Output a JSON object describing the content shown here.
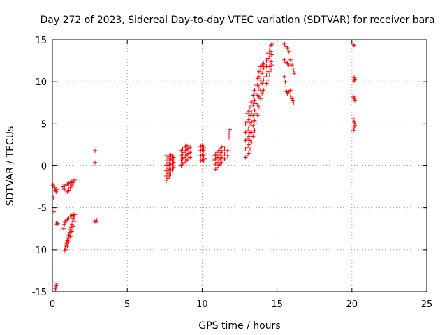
{
  "chart_data": {
    "type": "scatter",
    "title": "Day 272 of 2023, Sidereal Day-to-day VTEC variation (SDTVAR) for receiver bara",
    "xlabel": "GPS time / hours",
    "ylabel": "SDTVAR / TECUs",
    "xlim": [
      0,
      25
    ],
    "ylim": [
      -15,
      15
    ],
    "xticks": [
      0,
      5,
      10,
      15,
      20,
      25
    ],
    "yticks": [
      -15,
      -10,
      -5,
      0,
      5,
      10,
      15
    ],
    "grid": true,
    "marker": "+",
    "color": "#ff0000",
    "series": [
      {
        "name": "SDTVAR",
        "points": [
          [
            0.05,
            -2.3
          ],
          [
            0.08,
            -3.8
          ],
          [
            0.1,
            -5.5
          ],
          [
            0.15,
            -2.6
          ],
          [
            0.2,
            -2.9
          ],
          [
            0.25,
            -3.1
          ],
          [
            0.3,
            -2.8
          ],
          [
            0.2,
            -14.6
          ],
          [
            0.25,
            -14.3
          ],
          [
            0.3,
            -14.0
          ],
          [
            0.22,
            -14.8
          ],
          [
            0.25,
            -6.8
          ],
          [
            0.3,
            -7.0
          ],
          [
            0.35,
            -6.9
          ],
          [
            0.7,
            -2.5
          ],
          [
            0.8,
            -2.4
          ],
          [
            0.9,
            -2.3
          ],
          [
            1.0,
            -2.2
          ],
          [
            1.1,
            -2.1
          ],
          [
            1.2,
            -2.0
          ],
          [
            1.3,
            -1.9
          ],
          [
            1.4,
            -1.8
          ],
          [
            1.5,
            -1.7
          ],
          [
            0.8,
            -2.8
          ],
          [
            0.9,
            -3.0
          ],
          [
            1.0,
            -3.1
          ],
          [
            1.1,
            -2.9
          ],
          [
            1.2,
            -2.6
          ],
          [
            1.3,
            -2.3
          ],
          [
            1.4,
            -2.0
          ],
          [
            0.75,
            -7.5
          ],
          [
            0.8,
            -7.0
          ],
          [
            0.85,
            -6.7
          ],
          [
            0.9,
            -6.5
          ],
          [
            1.0,
            -6.4
          ],
          [
            1.1,
            -6.2
          ],
          [
            1.2,
            -6.0
          ],
          [
            1.3,
            -5.9
          ],
          [
            1.4,
            -5.8
          ],
          [
            1.5,
            -5.8
          ],
          [
            0.8,
            -10.1
          ],
          [
            0.85,
            -9.8
          ],
          [
            0.9,
            -9.5
          ],
          [
            0.95,
            -9.2
          ],
          [
            1.0,
            -8.9
          ],
          [
            1.05,
            -8.6
          ],
          [
            1.1,
            -8.3
          ],
          [
            1.15,
            -8.0
          ],
          [
            1.2,
            -7.6
          ],
          [
            1.25,
            -7.3
          ],
          [
            1.3,
            -7.0
          ],
          [
            1.35,
            -6.6
          ],
          [
            1.4,
            -6.3
          ],
          [
            1.45,
            -6.0
          ],
          [
            1.5,
            -5.8
          ],
          [
            0.9,
            -10.0
          ],
          [
            1.0,
            -9.6
          ],
          [
            1.1,
            -9.0
          ],
          [
            1.2,
            -8.4
          ],
          [
            1.3,
            -7.8
          ],
          [
            1.4,
            -7.2
          ],
          [
            1.5,
            -6.6
          ],
          [
            2.85,
            1.8
          ],
          [
            2.85,
            0.4
          ],
          [
            2.8,
            -6.6
          ],
          [
            2.9,
            -6.7
          ],
          [
            2.95,
            -6.5
          ],
          [
            7.6,
            -1.8
          ],
          [
            7.6,
            -1.2
          ],
          [
            7.6,
            -0.6
          ],
          [
            7.6,
            0.0
          ],
          [
            7.6,
            0.6
          ],
          [
            7.6,
            1.2
          ],
          [
            7.7,
            -1.5
          ],
          [
            7.7,
            -0.9
          ],
          [
            7.7,
            -0.3
          ],
          [
            7.7,
            0.3
          ],
          [
            7.7,
            0.9
          ],
          [
            7.8,
            -1.2
          ],
          [
            7.8,
            -0.6
          ],
          [
            7.8,
            0.0
          ],
          [
            7.8,
            0.6
          ],
          [
            7.8,
            1.1
          ],
          [
            7.9,
            -1.0
          ],
          [
            7.9,
            -0.4
          ],
          [
            7.9,
            0.2
          ],
          [
            7.9,
            0.8
          ],
          [
            7.9,
            1.3
          ],
          [
            8.0,
            -0.5
          ],
          [
            8.0,
            0.1
          ],
          [
            8.0,
            0.7
          ],
          [
            8.0,
            1.2
          ],
          [
            8.1,
            -0.2
          ],
          [
            8.1,
            0.4
          ],
          [
            8.1,
            1.0
          ],
          [
            8.6,
            0.0
          ],
          [
            8.6,
            0.6
          ],
          [
            8.6,
            1.2
          ],
          [
            8.6,
            1.8
          ],
          [
            8.7,
            0.2
          ],
          [
            8.7,
            0.8
          ],
          [
            8.7,
            1.4
          ],
          [
            8.7,
            2.0
          ],
          [
            8.8,
            0.4
          ],
          [
            8.8,
            1.0
          ],
          [
            8.8,
            1.6
          ],
          [
            8.8,
            2.2
          ],
          [
            8.9,
            0.6
          ],
          [
            8.9,
            1.2
          ],
          [
            8.9,
            1.8
          ],
          [
            8.9,
            2.3
          ],
          [
            9.0,
            0.7
          ],
          [
            9.0,
            1.3
          ],
          [
            9.0,
            1.9
          ],
          [
            9.0,
            2.4
          ],
          [
            9.1,
            0.9
          ],
          [
            9.1,
            1.5
          ],
          [
            9.1,
            2.1
          ],
          [
            9.2,
            1.0
          ],
          [
            9.2,
            1.6
          ],
          [
            9.2,
            2.2
          ],
          [
            9.9,
            0.6
          ],
          [
            9.9,
            1.2
          ],
          [
            9.9,
            1.8
          ],
          [
            9.9,
            2.3
          ],
          [
            10.0,
            0.7
          ],
          [
            10.0,
            1.3
          ],
          [
            10.0,
            1.9
          ],
          [
            10.0,
            2.4
          ],
          [
            10.1,
            0.6
          ],
          [
            10.1,
            1.2
          ],
          [
            10.1,
            1.8
          ],
          [
            10.1,
            2.2
          ],
          [
            10.2,
            0.8
          ],
          [
            10.2,
            1.4
          ],
          [
            10.2,
            2.0
          ],
          [
            10.8,
            -0.5
          ],
          [
            10.8,
            0.1
          ],
          [
            10.8,
            0.7
          ],
          [
            10.8,
            1.2
          ],
          [
            10.9,
            -0.4
          ],
          [
            10.9,
            0.2
          ],
          [
            10.9,
            0.8
          ],
          [
            10.9,
            1.3
          ],
          [
            11.0,
            -0.2
          ],
          [
            11.0,
            0.4
          ],
          [
            11.0,
            1.0
          ],
          [
            11.0,
            1.6
          ],
          [
            11.1,
            0.0
          ],
          [
            11.1,
            0.6
          ],
          [
            11.1,
            1.2
          ],
          [
            11.1,
            1.8
          ],
          [
            11.2,
            0.2
          ],
          [
            11.2,
            0.8
          ],
          [
            11.2,
            1.4
          ],
          [
            11.2,
            2.0
          ],
          [
            11.3,
            0.4
          ],
          [
            11.3,
            1.0
          ],
          [
            11.3,
            1.6
          ],
          [
            11.3,
            2.2
          ],
          [
            11.4,
            0.6
          ],
          [
            11.4,
            1.2
          ],
          [
            11.4,
            1.8
          ],
          [
            11.4,
            2.3
          ],
          [
            11.5,
            0.8
          ],
          [
            11.5,
            1.4
          ],
          [
            11.5,
            2.0
          ],
          [
            11.7,
            1.2
          ],
          [
            11.7,
            1.8
          ],
          [
            11.8,
            3.4
          ],
          [
            11.8,
            3.9
          ],
          [
            11.85,
            4.3
          ],
          [
            12.9,
            1.0
          ],
          [
            12.9,
            2.0
          ],
          [
            12.9,
            3.0
          ],
          [
            12.9,
            4.0
          ],
          [
            12.9,
            5.0
          ],
          [
            13.0,
            1.2
          ],
          [
            13.0,
            2.2
          ],
          [
            13.0,
            3.2
          ],
          [
            13.0,
            4.2
          ],
          [
            13.0,
            5.2
          ],
          [
            13.0,
            6.2
          ],
          [
            13.1,
            1.5
          ],
          [
            13.1,
            2.5
          ],
          [
            13.1,
            3.5
          ],
          [
            13.1,
            4.5
          ],
          [
            13.1,
            5.5
          ],
          [
            13.1,
            6.5
          ],
          [
            13.2,
            2.0
          ],
          [
            13.2,
            3.0
          ],
          [
            13.2,
            4.0
          ],
          [
            13.2,
            5.0
          ],
          [
            13.2,
            6.0
          ],
          [
            13.2,
            7.0
          ],
          [
            13.3,
            2.8
          ],
          [
            13.3,
            4.0
          ],
          [
            13.3,
            5.2
          ],
          [
            13.3,
            6.4
          ],
          [
            13.3,
            7.6
          ],
          [
            13.4,
            3.5
          ],
          [
            13.4,
            4.8
          ],
          [
            13.4,
            6.0
          ],
          [
            13.4,
            7.2
          ],
          [
            13.4,
            8.4
          ],
          [
            13.5,
            4.2
          ],
          [
            13.5,
            5.4
          ],
          [
            13.5,
            6.6
          ],
          [
            13.5,
            7.8
          ],
          [
            13.5,
            9.0
          ],
          [
            13.6,
            5.0
          ],
          [
            13.6,
            6.2
          ],
          [
            13.6,
            7.4
          ],
          [
            13.6,
            8.6
          ],
          [
            13.6,
            9.6
          ],
          [
            13.7,
            6.0
          ],
          [
            13.7,
            7.2
          ],
          [
            13.7,
            8.4
          ],
          [
            13.7,
            9.6
          ],
          [
            13.7,
            10.4
          ],
          [
            13.8,
            7.0
          ],
          [
            13.8,
            8.2
          ],
          [
            13.8,
            9.4
          ],
          [
            13.8,
            10.6
          ],
          [
            13.8,
            11.2
          ],
          [
            13.9,
            8.0
          ],
          [
            13.9,
            9.0
          ],
          [
            13.9,
            10.2
          ],
          [
            13.9,
            11.4
          ],
          [
            13.9,
            11.8
          ],
          [
            14.0,
            8.6
          ],
          [
            14.0,
            9.8
          ],
          [
            14.0,
            11.0
          ],
          [
            14.0,
            12.0
          ],
          [
            14.1,
            9.0
          ],
          [
            14.1,
            10.2
          ],
          [
            14.1,
            11.6
          ],
          [
            14.1,
            12.2
          ],
          [
            14.2,
            9.4
          ],
          [
            14.2,
            10.6
          ],
          [
            14.2,
            11.8
          ],
          [
            14.2,
            12.1
          ],
          [
            14.3,
            9.8
          ],
          [
            14.3,
            10.8
          ],
          [
            14.3,
            11.8
          ],
          [
            14.3,
            12.5
          ],
          [
            14.4,
            10.2
          ],
          [
            14.4,
            11.2
          ],
          [
            14.4,
            12.8
          ],
          [
            14.4,
            13.4
          ],
          [
            14.5,
            10.8
          ],
          [
            14.5,
            11.8
          ],
          [
            14.5,
            13.0
          ],
          [
            14.5,
            13.8
          ],
          [
            14.6,
            11.4
          ],
          [
            14.6,
            12.4
          ],
          [
            14.6,
            13.6
          ],
          [
            14.6,
            14.3
          ],
          [
            14.65,
            12.0
          ],
          [
            14.65,
            13.2
          ],
          [
            14.65,
            14.5
          ],
          [
            15.5,
            14.5
          ],
          [
            15.6,
            14.2
          ],
          [
            15.7,
            14.0
          ],
          [
            15.8,
            13.6
          ],
          [
            15.5,
            12.6
          ],
          [
            15.6,
            12.3
          ],
          [
            15.7,
            12.2
          ],
          [
            15.8,
            12.0
          ],
          [
            15.9,
            12.6
          ],
          [
            16.0,
            12.0
          ],
          [
            16.1,
            11.4
          ],
          [
            16.15,
            11.0
          ],
          [
            15.5,
            10.6
          ],
          [
            15.55,
            10.0
          ],
          [
            15.6,
            9.4
          ],
          [
            15.65,
            8.8
          ],
          [
            15.7,
            8.6
          ],
          [
            15.8,
            8.8
          ],
          [
            15.9,
            9.0
          ],
          [
            15.9,
            8.3
          ],
          [
            16.0,
            8.0
          ],
          [
            16.05,
            7.8
          ],
          [
            16.1,
            7.5
          ],
          [
            20.1,
            14.4
          ],
          [
            20.15,
            14.3
          ],
          [
            20.15,
            10.5
          ],
          [
            20.2,
            10.3
          ],
          [
            20.15,
            10.1
          ],
          [
            20.1,
            8.2
          ],
          [
            20.15,
            8.0
          ],
          [
            20.2,
            7.8
          ],
          [
            20.1,
            5.6
          ],
          [
            20.15,
            5.2
          ],
          [
            20.2,
            4.8
          ],
          [
            20.15,
            4.5
          ],
          [
            20.1,
            4.2
          ],
          [
            20.2,
            5.0
          ]
        ]
      }
    ]
  }
}
